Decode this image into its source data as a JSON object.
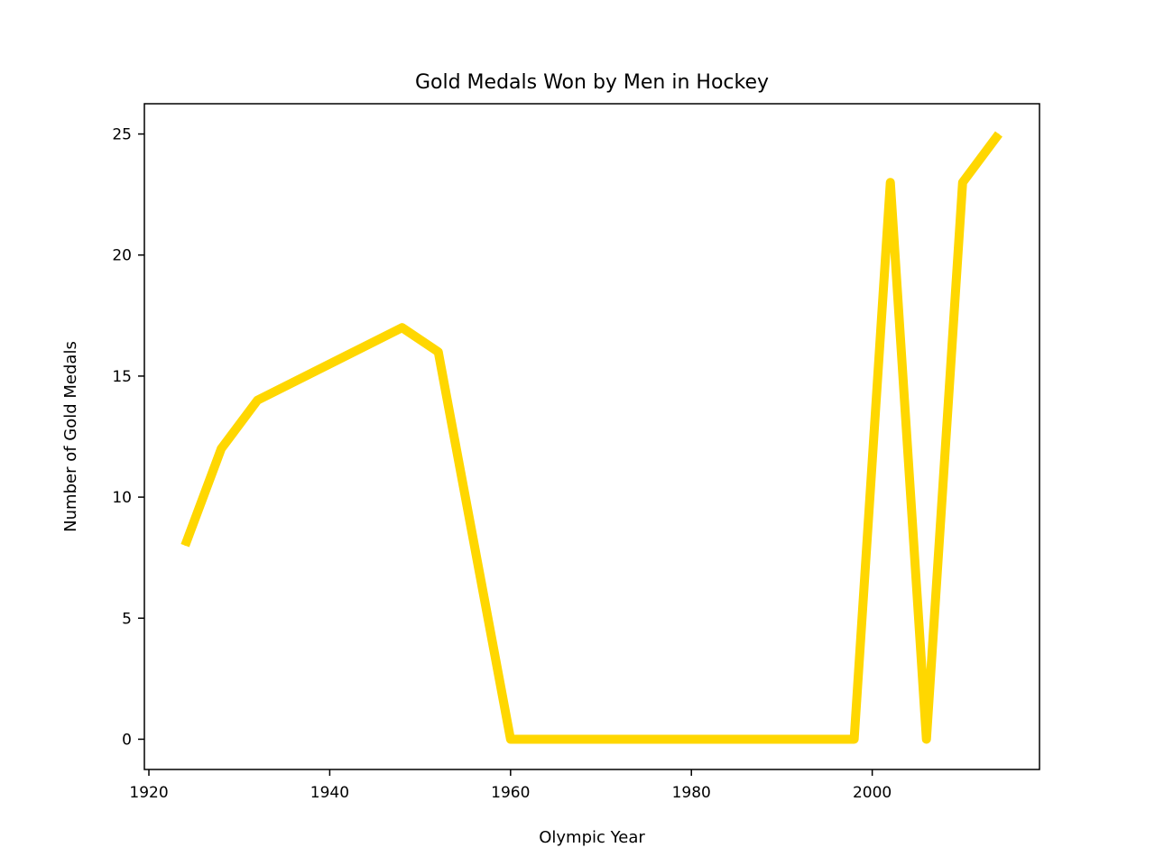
{
  "chart_data": {
    "type": "line",
    "title": "Gold Medals Won by Men in Hockey",
    "xlabel": "Olympic Year",
    "ylabel": "Number of Gold Medals",
    "xlim": [
      1919.5,
      2018.5
    ],
    "ylim": [
      -1.25,
      26.25
    ],
    "x_ticks": [
      1920,
      1940,
      1960,
      1980,
      2000
    ],
    "y_ticks": [
      0,
      5,
      10,
      15,
      20,
      25
    ],
    "grid": false,
    "legend": "none",
    "series": [
      {
        "color": "#FFD700",
        "x": [
          1924,
          1928,
          1932,
          1948,
          1952,
          1960,
          1998,
          2002,
          2006,
          2010,
          2014
        ],
        "y": [
          8,
          12,
          14,
          17,
          16,
          0,
          0,
          23,
          0,
          23,
          25
        ]
      }
    ]
  }
}
